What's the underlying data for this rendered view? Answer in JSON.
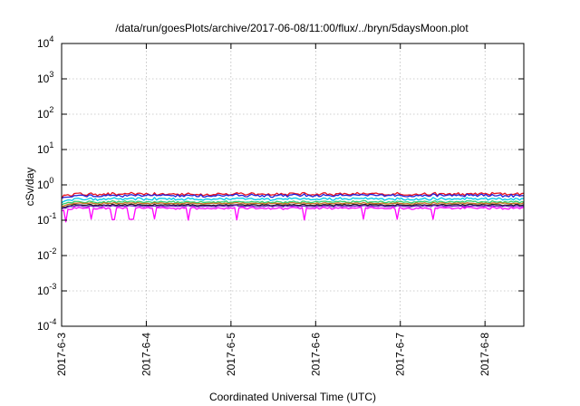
{
  "chart_data": {
    "type": "line",
    "title": "/data/run/goesPlots/archive/2017-06-08/11:00/flux/../bryn/5daysMoon.plot",
    "xlabel": "Coordinated Universal Time (UTC)",
    "ylabel": "cSv/day",
    "yscale": "log",
    "ylim": [
      0.0001,
      10000
    ],
    "xlim": [
      "2017-06-03 00:00",
      "2017-06-08 11:00"
    ],
    "grid": true,
    "x_ticks": [
      "2017-6-3",
      "2017-6-4",
      "2017-6-5",
      "2017-6-6",
      "2017-6-7",
      "2017-6-8"
    ],
    "y_ticks": [
      {
        "base": "10",
        "exp": "-4"
      },
      {
        "base": "10",
        "exp": "-3"
      },
      {
        "base": "10",
        "exp": "-2"
      },
      {
        "base": "10",
        "exp": "-1"
      },
      {
        "base": "10",
        "exp": "0"
      },
      {
        "base": "10",
        "exp": "1"
      },
      {
        "base": "10",
        "exp": "2"
      },
      {
        "base": "10",
        "exp": "3"
      },
      {
        "base": "10",
        "exp": "4"
      }
    ],
    "series": [
      {
        "color": "#e8121f",
        "level": 0.55,
        "var": 0.1
      },
      {
        "color": "#1f1fd6",
        "level": 0.5,
        "var": 0.1
      },
      {
        "color": "#00c8e8",
        "level": 0.4,
        "var": 0.09
      },
      {
        "color": "#30d070",
        "level": 0.33,
        "var": 0.07
      },
      {
        "color": "#c87020",
        "level": 0.3,
        "var": 0.05
      },
      {
        "color": "#202020",
        "level": 0.27,
        "var": 0.05
      },
      {
        "color": "#7020c0",
        "level": 0.25,
        "var": 0.05
      },
      {
        "color": "#ff00ff",
        "level": 0.22,
        "var": 0.08
      }
    ]
  }
}
